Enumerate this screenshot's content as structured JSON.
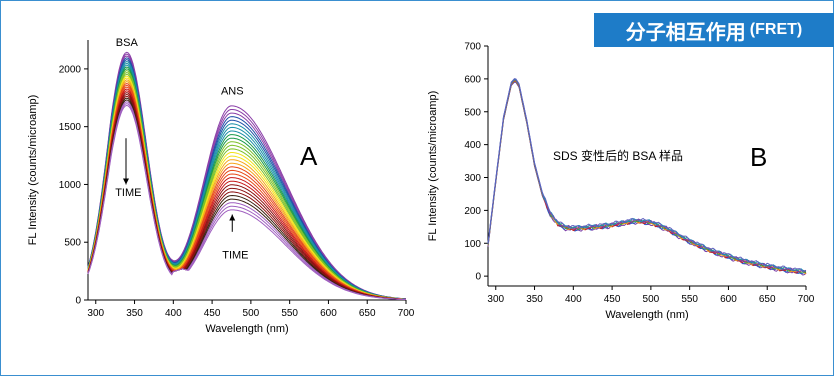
{
  "banner": {
    "title": "分子相互作用",
    "subtitle": "(FRET)"
  },
  "chart_data": [
    {
      "type": "line",
      "panel_letter": "A",
      "xlabel": "Wavelength (nm)",
      "ylabel": "FL Intensity (counts/microamp)",
      "xlim": [
        290,
        700
      ],
      "ylim": [
        0,
        2250
      ],
      "xticks": [
        300,
        350,
        400,
        450,
        500,
        550,
        600,
        650,
        700
      ],
      "yticks": [
        0,
        500,
        1000,
        1500,
        2000
      ],
      "grid": false,
      "annotations": [
        {
          "text": "BSA",
          "at": [
            340,
            2200
          ]
        },
        {
          "text": "ANS",
          "at": [
            476,
            1780
          ]
        },
        {
          "text": "TIME",
          "at": [
            342,
            900
          ]
        },
        {
          "text": "TIME",
          "at": [
            480,
            360
          ]
        }
      ],
      "arrows": [
        {
          "from": [
            339,
            1400
          ],
          "to": [
            339,
            1000
          ]
        },
        {
          "from": [
            476,
            590
          ],
          "to": [
            476,
            740
          ]
        }
      ],
      "family": {
        "count": 30,
        "bsa_peak_nm": 340,
        "ans_peak_nm": 475,
        "isosbestic_nm": 410,
        "bsa_peak_range": [
          2100,
          1650
        ],
        "ans_peak_range": [
          1680,
          780
        ],
        "colors_high_to_low": [
          "#8b3fa8",
          "#1f4fa8",
          "#1a8fa8",
          "#1a9a4a",
          "#7cc12a",
          "#f2e21a",
          "#f6a51a",
          "#e84a1a",
          "#c81818",
          "#8b1010",
          "#3a2010",
          "#a060c0"
        ]
      }
    },
    {
      "type": "line",
      "panel_letter": "B",
      "title": "SDS 变性后的 BSA 样品",
      "xlabel": "Wavelength (nm)",
      "ylabel": "FL Intensity (counts/microamp)",
      "xlim": [
        290,
        700
      ],
      "ylim": [
        -30,
        700
      ],
      "xticks": [
        300,
        350,
        400,
        450,
        500,
        550,
        600,
        650,
        700
      ],
      "yticks": [
        0,
        100,
        200,
        300,
        400,
        500,
        600,
        700
      ],
      "grid": false,
      "series_profile": {
        "x": [
          290,
          300,
          310,
          320,
          325,
          330,
          340,
          350,
          360,
          370,
          380,
          390,
          400,
          420,
          440,
          460,
          480,
          500,
          520,
          540,
          560,
          580,
          600,
          620,
          640,
          660,
          680,
          700
        ],
        "y": [
          95,
          290,
          480,
          585,
          598,
          580,
          470,
          340,
          250,
          190,
          160,
          148,
          145,
          148,
          152,
          160,
          168,
          163,
          145,
          118,
          95,
          75,
          60,
          45,
          35,
          25,
          18,
          12
        ]
      },
      "family": {
        "count": 8,
        "colors": [
          "#7a3fa8",
          "#2a5fc8",
          "#c82020",
          "#e8a020",
          "#3aa04a",
          "#8b2fa0",
          "#1e90b0",
          "#6060c0"
        ]
      }
    }
  ]
}
